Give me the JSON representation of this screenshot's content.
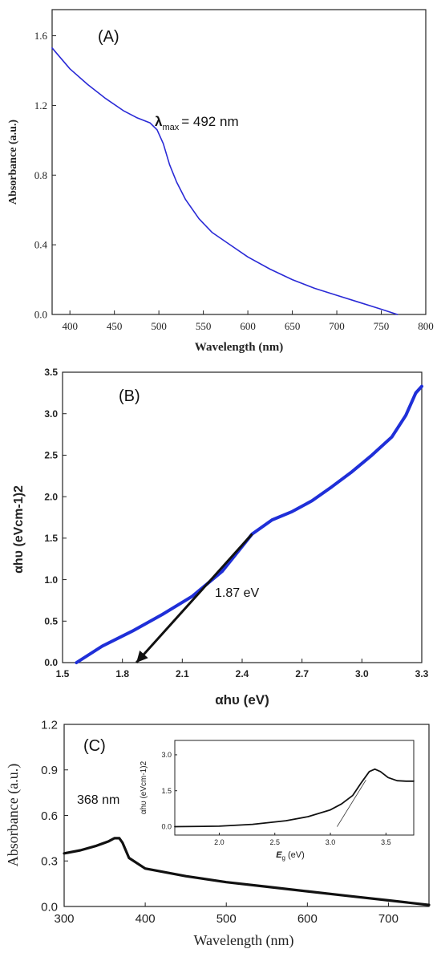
{
  "chart_data": [
    {
      "type": "line",
      "panel_label": "(A)",
      "xlabel": "Wavelength (nm)",
      "ylabel": "Absorbance (a.u.)",
      "xlim": [
        380,
        800
      ],
      "ylim": [
        0.0,
        1.75
      ],
      "xticks": [
        "400",
        "450",
        "500",
        "550",
        "600",
        "650",
        "700",
        "750",
        "800"
      ],
      "yticks": [
        "0.0",
        "0.4",
        "0.8",
        "1.2",
        "1.6"
      ],
      "annotation": {
        "symbol": "λ",
        "sub": "max",
        "text": "= 492 nm",
        "x": 492,
        "y": 1.1
      },
      "series": [
        {
          "color": "#2a2ad6",
          "x": [
            380,
            400,
            420,
            440,
            460,
            475,
            490,
            498,
            505,
            512,
            520,
            530,
            545,
            560,
            580,
            600,
            625,
            650,
            675,
            700,
            725,
            750,
            768
          ],
          "y": [
            1.53,
            1.41,
            1.32,
            1.24,
            1.17,
            1.13,
            1.1,
            1.06,
            0.98,
            0.86,
            0.76,
            0.66,
            0.55,
            0.47,
            0.4,
            0.33,
            0.26,
            0.2,
            0.15,
            0.11,
            0.07,
            0.03,
            0.0
          ]
        }
      ]
    },
    {
      "type": "line",
      "panel_label": "(B)",
      "xlabel": "αhυ (eV)",
      "ylabel": "αhυ (eVcm-1)2",
      "xlim": [
        1.5,
        3.3
      ],
      "ylim": [
        0.0,
        3.5
      ],
      "xticks": [
        "1.5",
        "1.8",
        "2.1",
        "2.4",
        "2.7",
        "3.0",
        "3.3"
      ],
      "yticks": [
        "0.0",
        "0.5",
        "1.0",
        "1.5",
        "2.0",
        "2.5",
        "3.0",
        "3.5"
      ],
      "annotation": {
        "text": "1.87 eV",
        "arrow_from": [
          2.45,
          1.55
        ],
        "arrow_to": [
          1.87,
          0.0
        ]
      },
      "series": [
        {
          "color": "#1f2fd8",
          "x": [
            1.57,
            1.7,
            1.85,
            2.0,
            2.15,
            2.3,
            2.45,
            2.55,
            2.65,
            2.75,
            2.85,
            2.95,
            3.05,
            3.15,
            3.22,
            3.27,
            3.3
          ],
          "y": [
            0.0,
            0.2,
            0.38,
            0.58,
            0.8,
            1.1,
            1.55,
            1.72,
            1.82,
            1.95,
            2.12,
            2.3,
            2.5,
            2.72,
            2.98,
            3.25,
            3.33
          ]
        }
      ]
    },
    {
      "type": "line",
      "panel_label": "(C)",
      "xlabel": "Wavelength (nm)",
      "ylabel": "Absorbance (a.u.)",
      "xlim": [
        300,
        750
      ],
      "ylim": [
        0.0,
        1.2
      ],
      "xticks": [
        "300",
        "400",
        "500",
        "600",
        "700"
      ],
      "yticks": [
        "0.0",
        "0.3",
        "0.6",
        "0.9",
        "1.2"
      ],
      "annotation": {
        "text": "368 nm",
        "x": 368,
        "y": 0.45
      },
      "series": [
        {
          "color": "#111111",
          "x": [
            300,
            320,
            340,
            355,
            362,
            368,
            372,
            380,
            400,
            450,
            500,
            550,
            600,
            650,
            700,
            750
          ],
          "y": [
            0.35,
            0.37,
            0.4,
            0.43,
            0.45,
            0.45,
            0.42,
            0.32,
            0.25,
            0.2,
            0.16,
            0.13,
            0.1,
            0.07,
            0.04,
            0.01
          ]
        }
      ],
      "inset": {
        "xlabel_main": "E",
        "xlabel_sub": "g",
        "xlabel_unit": "(eV)",
        "ylabel": "αhυ (eVcm-1)2",
        "xlim": [
          1.6,
          3.75
        ],
        "ylim": [
          -0.35,
          3.6
        ],
        "xticks": [
          "2.0",
          "2.5",
          "3.0",
          "3.5"
        ],
        "yticks": [
          "0.0",
          "1.5",
          "3.0"
        ],
        "tangent": {
          "x": [
            3.06,
            3.32
          ],
          "y": [
            0.0,
            1.95
          ]
        },
        "series": [
          {
            "color": "#111111",
            "x": [
              1.6,
              2.0,
              2.3,
              2.6,
              2.8,
              3.0,
              3.1,
              3.2,
              3.28,
              3.35,
              3.4,
              3.45,
              3.52,
              3.6,
              3.68,
              3.75
            ],
            "y": [
              0.0,
              0.02,
              0.1,
              0.25,
              0.42,
              0.7,
              0.95,
              1.3,
              1.85,
              2.3,
              2.4,
              2.3,
              2.05,
              1.92,
              1.9,
              1.9
            ]
          }
        ]
      }
    }
  ]
}
